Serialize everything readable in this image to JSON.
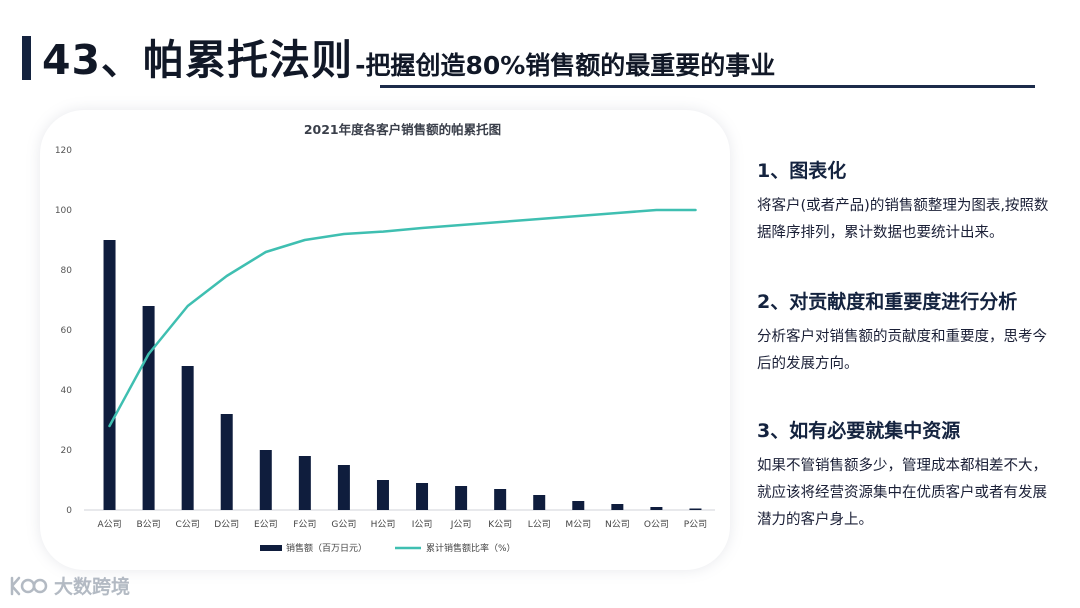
{
  "slide": {
    "title_main": "43、帕累托法则",
    "title_sub": "-把握创造80%销售额的最重要的事业"
  },
  "chart_data": {
    "type": "bar+line",
    "title": "2021年度各客户销售额的帕累托图",
    "categories": [
      "A公司",
      "B公司",
      "C公司",
      "D公司",
      "E公司",
      "F公司",
      "G公司",
      "H公司",
      "I公司",
      "J公司",
      "K公司",
      "L公司",
      "M公司",
      "N公司",
      "O公司",
      "P公司"
    ],
    "series": [
      {
        "name": "销售额（百万日元）",
        "kind": "bar",
        "color": "#0f1d3d",
        "values": [
          90,
          68,
          48,
          32,
          20,
          18,
          15,
          10,
          9,
          8,
          7,
          5,
          3,
          2,
          1,
          0.5
        ]
      },
      {
        "name": "累计销售额比率（%）",
        "kind": "line",
        "color": "#3fbfb1",
        "values": [
          28,
          52,
          68,
          78,
          86,
          90,
          92,
          92.8,
          94,
          95,
          96,
          97,
          98,
          99,
          100,
          100
        ]
      }
    ],
    "yticks": [
      0,
      20,
      40,
      60,
      80,
      100,
      120
    ],
    "ylim": [
      0,
      120
    ],
    "grid": false,
    "legend": "bottom"
  },
  "sections": [
    {
      "heading": "1、图表化",
      "body": "将客户(或者产品)的销售额整理为图表,按照数据降序排列，累计数据也要统计出来。"
    },
    {
      "heading": "2、对贡献度和重要度进行分析",
      "body": "分析客户对销售额的贡献度和重要度，思考今后的发展方向。"
    },
    {
      "heading": "3、如有必要就集中资源",
      "body": "如果不管销售额多少，管理成本都相差不大，就应该将经营资源集中在优质客户或者有发展潜力的客户身上。"
    }
  ],
  "watermark": {
    "text": "大数跨境",
    "icon": "brand-logo-icon"
  }
}
